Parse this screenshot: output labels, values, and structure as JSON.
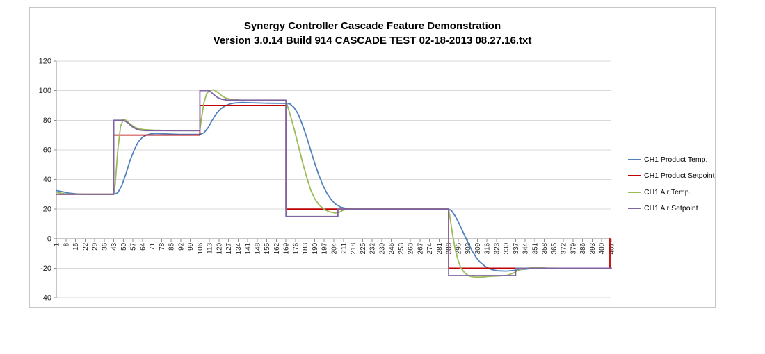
{
  "chart_data": {
    "type": "line",
    "title": "Synergy Controller Cascade Feature Demonstration",
    "subtitle": "Version 3.0.14 Build 914 CASCADE TEST 02-18-2013 08.27.16.txt",
    "xlim": [
      1,
      407
    ],
    "ylim": [
      -40,
      120
    ],
    "y_ticks": [
      120,
      100,
      80,
      60,
      40,
      20,
      0,
      -20,
      -40
    ],
    "x_ticks": [
      1,
      8,
      15,
      22,
      29,
      36,
      43,
      50,
      57,
      64,
      71,
      78,
      85,
      92,
      99,
      106,
      113,
      120,
      127,
      134,
      141,
      148,
      155,
      162,
      169,
      176,
      183,
      190,
      197,
      204,
      211,
      218,
      225,
      232,
      239,
      246,
      253,
      260,
      267,
      274,
      281,
      288,
      295,
      302,
      309,
      316,
      323,
      330,
      337,
      344,
      351,
      358,
      365,
      372,
      379,
      386,
      393,
      400,
      407
    ],
    "grid": true,
    "legend_position": "right",
    "grid_color": "#d9d9d9",
    "axis_color": "#8c8c8c",
    "tick_label_color": "#262626",
    "series": [
      {
        "name": "CH1 Product Temp.",
        "color": "#4f81bd",
        "points": [
          [
            1,
            32.5
          ],
          [
            5,
            31.8
          ],
          [
            10,
            30.8
          ],
          [
            16,
            30.2
          ],
          [
            22,
            30
          ],
          [
            43,
            30
          ],
          [
            46,
            31
          ],
          [
            49,
            36
          ],
          [
            52,
            44
          ],
          [
            55,
            53
          ],
          [
            58,
            60
          ],
          [
            61,
            65.5
          ],
          [
            64,
            68.5
          ],
          [
            67,
            70
          ],
          [
            70,
            70.8
          ],
          [
            74,
            71
          ],
          [
            80,
            70.8
          ],
          [
            90,
            70.5
          ],
          [
            106,
            70.4
          ],
          [
            109,
            71.5
          ],
          [
            112,
            75
          ],
          [
            115,
            80
          ],
          [
            118,
            84.5
          ],
          [
            121,
            87.5
          ],
          [
            124,
            89.5
          ],
          [
            128,
            91
          ],
          [
            132,
            91.7
          ],
          [
            137,
            92
          ],
          [
            144,
            91.8
          ],
          [
            155,
            91.5
          ],
          [
            169,
            91.4
          ],
          [
            172,
            91
          ],
          [
            175,
            88.5
          ],
          [
            178,
            84
          ],
          [
            181,
            77
          ],
          [
            184,
            69
          ],
          [
            187,
            60
          ],
          [
            190,
            51
          ],
          [
            193,
            43
          ],
          [
            196,
            36
          ],
          [
            199,
            30.5
          ],
          [
            202,
            26.5
          ],
          [
            205,
            23.5
          ],
          [
            209,
            21.3
          ],
          [
            213,
            20.4
          ],
          [
            219,
            20
          ],
          [
            288,
            20
          ],
          [
            290,
            19
          ],
          [
            293,
            15
          ],
          [
            296,
            9.5
          ],
          [
            299,
            3.5
          ],
          [
            302,
            -2.5
          ],
          [
            305,
            -8
          ],
          [
            308,
            -12.5
          ],
          [
            311,
            -16
          ],
          [
            315,
            -19
          ],
          [
            319,
            -20.8
          ],
          [
            324,
            -21.8
          ],
          [
            330,
            -22
          ],
          [
            336,
            -21.5
          ],
          [
            342,
            -20.8
          ],
          [
            349,
            -20.2
          ],
          [
            358,
            -20
          ],
          [
            407,
            -20
          ]
        ]
      },
      {
        "name": "CH1 Product Setpoint",
        "color": "#c00000",
        "points": [
          [
            1,
            30
          ],
          [
            43,
            30
          ],
          [
            43,
            70
          ],
          [
            106,
            70
          ],
          [
            106,
            90
          ],
          [
            169,
            90
          ],
          [
            169,
            20
          ],
          [
            288,
            20
          ],
          [
            288,
            -20
          ],
          [
            406,
            -20
          ],
          [
            406,
            0
          ]
        ]
      },
      {
        "name": "CH1 Air Temp.",
        "color": "#9bbb59",
        "points": [
          [
            1,
            31.5
          ],
          [
            4,
            30.8
          ],
          [
            8,
            30.2
          ],
          [
            14,
            30
          ],
          [
            43,
            30
          ],
          [
            44,
            36
          ],
          [
            46,
            60
          ],
          [
            48,
            76
          ],
          [
            50,
            80.5
          ],
          [
            52,
            80
          ],
          [
            55,
            77.5
          ],
          [
            58,
            75.5
          ],
          [
            61,
            74.3
          ],
          [
            65,
            73.7
          ],
          [
            72,
            73.3
          ],
          [
            85,
            73
          ],
          [
            106,
            73
          ],
          [
            107,
            80
          ],
          [
            109,
            92
          ],
          [
            111,
            98
          ],
          [
            113,
            100
          ],
          [
            116,
            100.6
          ],
          [
            119,
            99
          ],
          [
            122,
            96.5
          ],
          [
            125,
            95
          ],
          [
            129,
            94
          ],
          [
            136,
            93.6
          ],
          [
            169,
            93.3
          ],
          [
            170,
            90
          ],
          [
            172,
            84
          ],
          [
            175,
            74
          ],
          [
            178,
            63
          ],
          [
            181,
            52
          ],
          [
            184,
            42
          ],
          [
            187,
            33
          ],
          [
            190,
            27
          ],
          [
            193,
            23
          ],
          [
            196,
            20.5
          ],
          [
            199,
            18.8
          ],
          [
            202,
            17.8
          ],
          [
            205,
            17.3
          ],
          [
            208,
            17.8
          ],
          [
            211,
            19.3
          ],
          [
            215,
            20
          ],
          [
            288,
            20
          ],
          [
            289,
            14
          ],
          [
            291,
            2
          ],
          [
            293,
            -8
          ],
          [
            295,
            -15
          ],
          [
            297,
            -20
          ],
          [
            300,
            -23.5
          ],
          [
            303,
            -25.3
          ],
          [
            307,
            -26
          ],
          [
            312,
            -26
          ],
          [
            318,
            -25.5
          ],
          [
            325,
            -25.2
          ],
          [
            331,
            -24.8
          ],
          [
            335,
            -23.5
          ],
          [
            338,
            -22
          ],
          [
            341,
            -20.8
          ],
          [
            345,
            -20
          ],
          [
            352,
            -19.6
          ],
          [
            360,
            -19.9
          ],
          [
            370,
            -20
          ],
          [
            407,
            -20
          ]
        ]
      },
      {
        "name": "CH1 Air Setpoint",
        "color": "#8064a2",
        "points": [
          [
            1,
            30
          ],
          [
            43,
            30
          ],
          [
            43,
            80
          ],
          [
            50,
            80
          ],
          [
            53,
            78.5
          ],
          [
            56,
            76
          ],
          [
            59,
            74.3
          ],
          [
            62,
            73.3
          ],
          [
            66,
            73
          ],
          [
            106,
            73
          ],
          [
            106,
            100
          ],
          [
            113,
            100
          ],
          [
            116,
            97.5
          ],
          [
            119,
            95.3
          ],
          [
            122,
            94.2
          ],
          [
            126,
            93.6
          ],
          [
            169,
            93.6
          ],
          [
            169,
            15
          ],
          [
            207,
            15
          ],
          [
            207,
            20
          ],
          [
            288,
            20
          ],
          [
            288,
            -25
          ],
          [
            337,
            -25
          ],
          [
            337,
            -20
          ],
          [
            407,
            -20
          ]
        ]
      }
    ]
  }
}
